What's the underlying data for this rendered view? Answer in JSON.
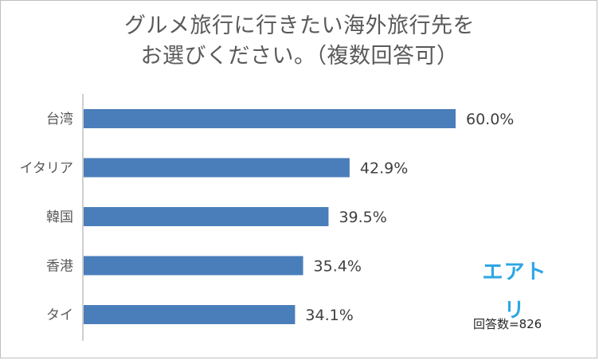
{
  "title_lines": [
    "グルメ旅行に行きたい海外旅行先を",
    "お選びください。（複数回答可）"
  ],
  "logo_text": "エアトリ",
  "respondents_text": "回答数=826",
  "colors": {
    "bar": "#4a7ebb",
    "logo": "#2ea6e3",
    "text": "#595959",
    "axis": "#bfbfbf"
  },
  "chart_data": {
    "type": "bar",
    "orientation": "horizontal",
    "title": "グルメ旅行に行きたい海外旅行先をお選びください。（複数回答可）",
    "categories": [
      "台湾",
      "イタリア",
      "韓国",
      "香港",
      "タイ"
    ],
    "values": [
      60.0,
      42.9,
      39.5,
      35.4,
      34.1
    ],
    "value_labels": [
      "60.0%",
      "42.9%",
      "39.5%",
      "35.4%",
      "34.1%"
    ],
    "xlim": [
      0,
      100
    ],
    "grid": false,
    "legend": "none"
  }
}
